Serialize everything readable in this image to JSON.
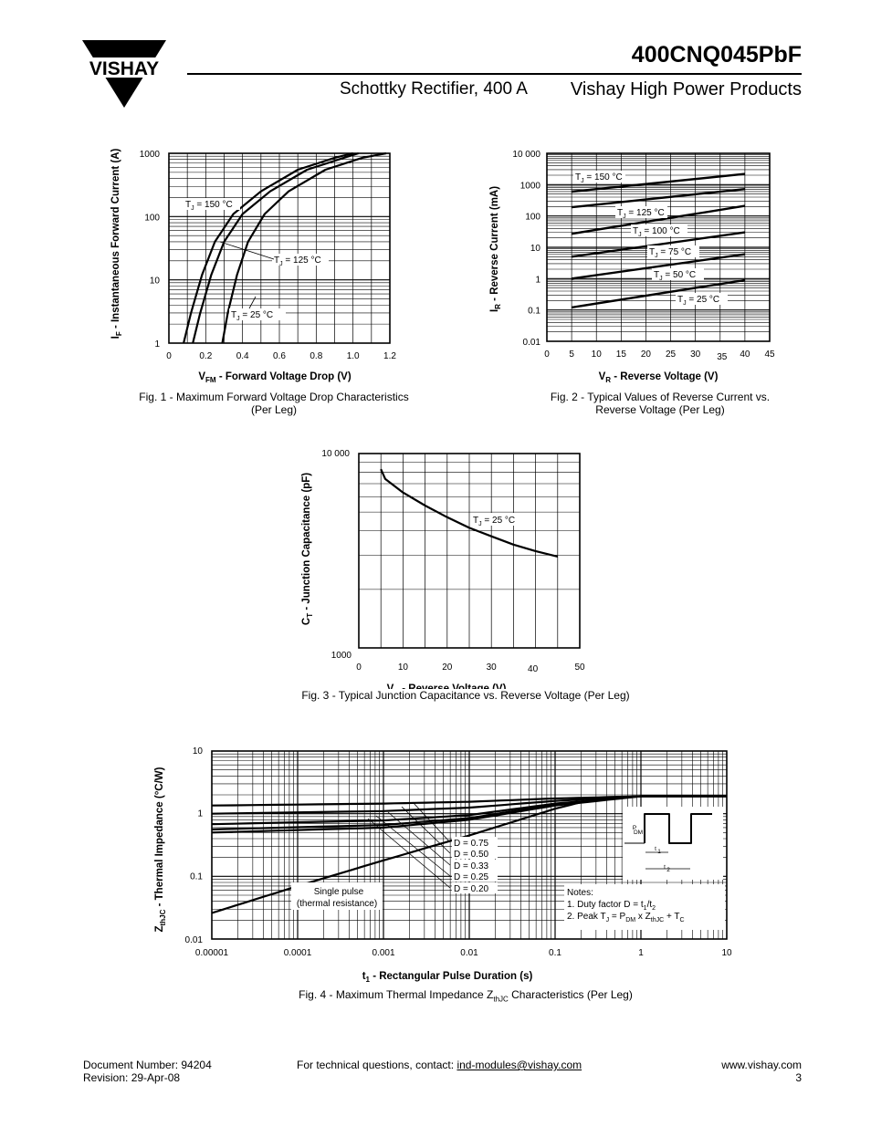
{
  "header": {
    "logo_text": "VISHAY",
    "part_number": "400CNQ045PbF",
    "subtitle": "Schottky Rectifier, 400 A",
    "division": "Vishay High Power Products"
  },
  "fig1": {
    "caption_line1": "Fig. 1 - Maximum Forward Voltage Drop Characteristics",
    "caption_line2": "(Per Leg)",
    "xlabel_main": "V",
    "xlabel_sub": "FM",
    "xlabel_rest": " - Forward Voltage Drop (V)",
    "ylabel_main": "I",
    "ylabel_sub": "F",
    "ylabel_rest": " - Instantaneous Forward Current (A)",
    "xticks": [
      "0",
      "0.2",
      "0.4",
      "0.6",
      "0.8",
      "1.0",
      "1.2"
    ],
    "yticks": [
      "1",
      "10",
      "100",
      "1000"
    ],
    "labels": [
      {
        "t": "T",
        "s": "J",
        "r": " = 150 °C"
      },
      {
        "t": "T",
        "s": "J",
        "r": " = 125 °C"
      },
      {
        "t": "T",
        "s": "J",
        "r": " = 25 °C"
      }
    ]
  },
  "fig2": {
    "caption_line1": "Fig. 2 - Typical Values of Reverse Current vs.",
    "caption_line2": "Reverse Voltage (Per Leg)",
    "xlabel_main": "V",
    "xlabel_sub": "R",
    "xlabel_rest": " - Reverse Voltage (V)",
    "ylabel_main": "I",
    "ylabel_sub": "R",
    "ylabel_rest": " - Reverse Current (mA)",
    "xticks": [
      "0",
      "5",
      "10",
      "15",
      "20",
      "25",
      "30",
      "35",
      "40",
      "45"
    ],
    "yticks": [
      "0.01",
      "0.1",
      "1",
      "10",
      "100",
      "1000",
      "10 000"
    ],
    "labels": [
      {
        "t": "T",
        "s": "J",
        "r": " = 150 °C"
      },
      {
        "t": "T",
        "s": "J",
        "r": " = 125 °C"
      },
      {
        "t": "T",
        "s": "J",
        "r": " = 100 °C"
      },
      {
        "t": "T",
        "s": "J",
        "r": " = 75 °C"
      },
      {
        "t": "T",
        "s": "J",
        "r": " = 50 °C"
      },
      {
        "t": "T",
        "s": "J",
        "r": " = 25 °C"
      }
    ]
  },
  "fig3": {
    "caption": "Fig. 3 - Typical Junction Capacitance vs. Reverse Voltage (Per Leg)",
    "xlabel_main": "V",
    "xlabel_sub": "R",
    "xlabel_rest": " - Reverse Voltage (V)",
    "ylabel_main": "C",
    "ylabel_sub": "T",
    "ylabel_rest": " - Junction Capacitance (pF)",
    "xticks": [
      "0",
      "10",
      "20",
      "30",
      "40",
      "50"
    ],
    "yticks": [
      "1000",
      "10 000"
    ],
    "label": {
      "t": "T",
      "s": "J",
      "r": " = 25 °C"
    }
  },
  "fig4": {
    "caption_pre": "Fig. 4 - Maximum Thermal Impedance Z",
    "caption_sub": "thJC",
    "caption_post": " Characteristics (Per Leg)",
    "xlabel_main": "t",
    "xlabel_sub": "1",
    "xlabel_rest": " - Rectangular Pulse Duration (s)",
    "ylabel_main": "Z",
    "ylabel_sub": "thJC",
    "ylabel_rest": " - Thermal Impedance (°C/W)",
    "xticks": [
      "0.00001",
      "0.0001",
      "0.001",
      "0.01",
      "0.1",
      "1",
      "10"
    ],
    "yticks": [
      "0.01",
      "0.1",
      "1",
      "10"
    ],
    "duty_labels": [
      "D = 0.75",
      "D = 0.50",
      "D = 0.33",
      "D = 0.25",
      "D = 0.20"
    ],
    "single_pulse_1": "Single pulse",
    "single_pulse_2": "(thermal resistance)",
    "notes_title": "Notes:",
    "note1_pre": "1. Duty factor D = t",
    "note1_s1": "1",
    "note1_mid": "/t",
    "note1_s2": "2",
    "note2_a": "2. Peak T",
    "note2_b": "J",
    "note2_c": " = P",
    "note2_d": "DM",
    "note2_e": " x Z",
    "note2_f": "thJC",
    "note2_g": " + T",
    "note2_h": "C",
    "pdm_label": "P",
    "pdm_sub": "DM",
    "t1_label": "t",
    "t1_sub": "1",
    "t2_label": "t",
    "t2_sub": "2"
  },
  "chart_data": [
    {
      "type": "line",
      "title": "Fig. 1 - Maximum Forward Voltage Drop Characteristics (Per Leg)",
      "xlabel": "VFM - Forward Voltage Drop (V)",
      "ylabel": "IF - Instantaneous Forward Current (A)",
      "xlim": [
        0,
        1.2
      ],
      "ylim": [
        1,
        1000
      ],
      "yscale": "log",
      "series": [
        {
          "name": "TJ = 150 °C",
          "x": [
            0.08,
            0.12,
            0.18,
            0.25,
            0.35,
            0.5,
            0.7,
            0.9,
            1.0
          ],
          "y": [
            1,
            3,
            12,
            40,
            110,
            250,
            550,
            850,
            1000
          ]
        },
        {
          "name": "TJ = 125 °C",
          "x": [
            0.13,
            0.17,
            0.23,
            0.3,
            0.4,
            0.55,
            0.75,
            0.95,
            1.03
          ],
          "y": [
            1,
            3,
            12,
            40,
            110,
            250,
            550,
            850,
            1000
          ]
        },
        {
          "name": "TJ = 25 °C",
          "x": [
            0.29,
            0.32,
            0.37,
            0.43,
            0.52,
            0.65,
            0.85,
            1.05,
            1.18
          ],
          "y": [
            1,
            3,
            12,
            40,
            110,
            250,
            550,
            850,
            1000
          ]
        }
      ]
    },
    {
      "type": "line",
      "title": "Fig. 2 - Typical Values of Reverse Current vs. Reverse Voltage (Per Leg)",
      "xlabel": "VR - Reverse Voltage (V)",
      "ylabel": "IR - Reverse Current (mA)",
      "xlim": [
        0,
        45
      ],
      "ylim": [
        0.01,
        10000
      ],
      "yscale": "log",
      "series": [
        {
          "name": "TJ = 150 °C",
          "x": [
            5,
            40
          ],
          "y": [
            600,
            2200
          ]
        },
        {
          "name": "TJ = 125 °C",
          "x": [
            5,
            40
          ],
          "y": [
            190,
            720
          ]
        },
        {
          "name": "TJ = 100 °C",
          "x": [
            5,
            40
          ],
          "y": [
            27,
            210
          ]
        },
        {
          "name": "TJ = 75 °C",
          "x": [
            5,
            40
          ],
          "y": [
            5,
            30
          ]
        },
        {
          "name": "TJ = 50 °C",
          "x": [
            5,
            40
          ],
          "y": [
            1,
            6
          ]
        },
        {
          "name": "TJ = 25 °C",
          "x": [
            5,
            40
          ],
          "y": [
            0.12,
            0.9
          ]
        }
      ]
    },
    {
      "type": "line",
      "title": "Fig. 3 - Typical Junction Capacitance vs. Reverse Voltage (Per Leg)",
      "xlabel": "VR - Reverse Voltage (V)",
      "ylabel": "CT - Junction Capacitance (pF)",
      "xlim": [
        0,
        50
      ],
      "ylim": [
        1000,
        10000
      ],
      "yscale": "log",
      "series": [
        {
          "name": "TJ = 25 °C",
          "x": [
            5,
            6,
            10,
            15,
            20,
            25,
            30,
            35,
            40,
            45
          ],
          "y": [
            8300,
            7400,
            6300,
            5400,
            4700,
            4150,
            3750,
            3400,
            3150,
            2950
          ]
        }
      ]
    },
    {
      "type": "line",
      "title": "Fig. 4 - Maximum Thermal Impedance ZthJC Characteristics (Per Leg)",
      "xlabel": "t1 - Rectangular Pulse Duration (s)",
      "ylabel": "ZthJC - Thermal Impedance (°C/W)",
      "xlim": [
        1e-05,
        10
      ],
      "ylim": [
        0.01,
        10
      ],
      "xscale": "log",
      "yscale": "log",
      "series": [
        {
          "name": "D = 0.75",
          "x": [
            1e-05,
            0.001,
            0.01,
            0.1,
            1,
            10
          ],
          "y": [
            1.35,
            1.45,
            1.55,
            1.75,
            1.9,
            1.9
          ]
        },
        {
          "name": "D = 0.50",
          "x": [
            1e-05,
            0.001,
            0.01,
            0.1,
            1,
            10
          ],
          "y": [
            1.0,
            1.1,
            1.25,
            1.6,
            1.9,
            1.9
          ]
        },
        {
          "name": "D = 0.33",
          "x": [
            1e-05,
            0.001,
            0.01,
            0.1,
            1,
            10
          ],
          "y": [
            0.68,
            0.78,
            0.95,
            1.45,
            1.9,
            1.9
          ]
        },
        {
          "name": "D = 0.25",
          "x": [
            1e-05,
            0.001,
            0.01,
            0.1,
            1,
            10
          ],
          "y": [
            0.56,
            0.66,
            0.85,
            1.4,
            1.9,
            1.9
          ]
        },
        {
          "name": "D = 0.20",
          "x": [
            1e-05,
            0.001,
            0.01,
            0.1,
            1,
            10
          ],
          "y": [
            0.5,
            0.6,
            0.8,
            1.35,
            1.9,
            1.9
          ]
        },
        {
          "name": "Single pulse (thermal resistance)",
          "x": [
            1e-05,
            0.0001,
            0.001,
            0.01,
            0.1,
            0.3,
            1,
            10
          ],
          "y": [
            0.026,
            0.07,
            0.18,
            0.45,
            1.2,
            1.75,
            1.9,
            1.9
          ]
        }
      ]
    }
  ],
  "footer": {
    "doc_number": "Document Number: 94204",
    "revision": "Revision: 29-Apr-08",
    "contact_text": "For technical questions, contact: ",
    "contact_email": "ind-modules@vishay.com",
    "website": "www.vishay.com",
    "page": "3"
  }
}
